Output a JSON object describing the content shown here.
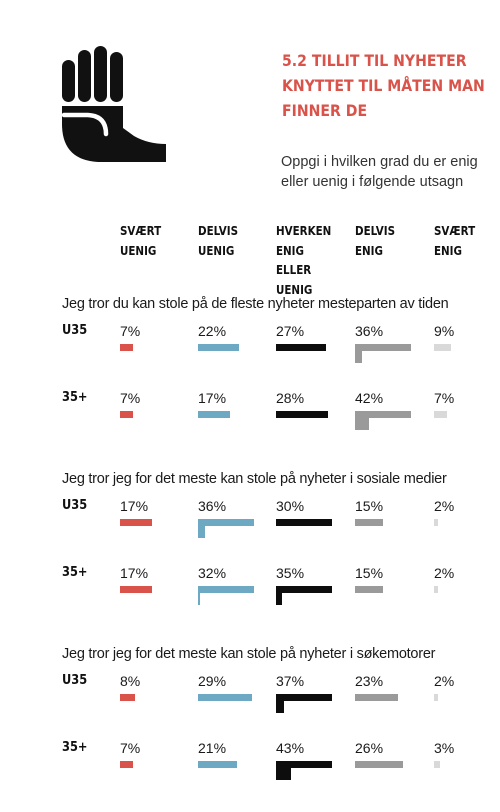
{
  "title": "5.2 TILLIT TIL NYHETER KNYTTET TIL MÅTEN MAN FINNER DE",
  "title_lines": [
    "5.2 TILLIT TIL NYHETER",
    "KNYTTET TIL MÅTEN MAN",
    "FINNER DE"
  ],
  "subtitle": "Oppgi i hvilken grad du er enig eller uenig i følgende utsagn",
  "logo_icon": "raised-hand-icon",
  "chart_data": {
    "type": "bar",
    "unit": "%",
    "categories": [
      "SVÆRT\nUENIG",
      "DELVIS\nUENIG",
      "HVERKEN\nENIG ELLER\nUENIG",
      "DELVIS\nENIG",
      "SVÆRT\nENIG"
    ],
    "colors": [
      "#d9534a",
      "#6ea9c4",
      "#0d0d0d",
      "#9a9a9a",
      "#d9d9d9"
    ],
    "blocks": [
      {
        "statement": "Jeg tror du kan stole på de fleste nyheter mesteparten av tiden",
        "groups": [
          {
            "name": "U35",
            "values": [
              7,
              22,
              27,
              36,
              9
            ]
          },
          {
            "name": "35+",
            "values": [
              7,
              17,
              28,
              42,
              7
            ]
          }
        ]
      },
      {
        "statement": "Jeg tror jeg for det meste kan stole på nyheter i sosiale medier",
        "groups": [
          {
            "name": "U35",
            "values": [
              17,
              36,
              30,
              15,
              2
            ]
          },
          {
            "name": "35+",
            "values": [
              17,
              32,
              35,
              15,
              2
            ]
          }
        ]
      },
      {
        "statement": "Jeg tror jeg for det meste kan stole på nyheter i søkemotorer",
        "groups": [
          {
            "name": "U35",
            "values": [
              8,
              29,
              37,
              23,
              2
            ]
          },
          {
            "name": "35+",
            "values": [
              7,
              21,
              43,
              26,
              3
            ]
          }
        ]
      }
    ]
  }
}
